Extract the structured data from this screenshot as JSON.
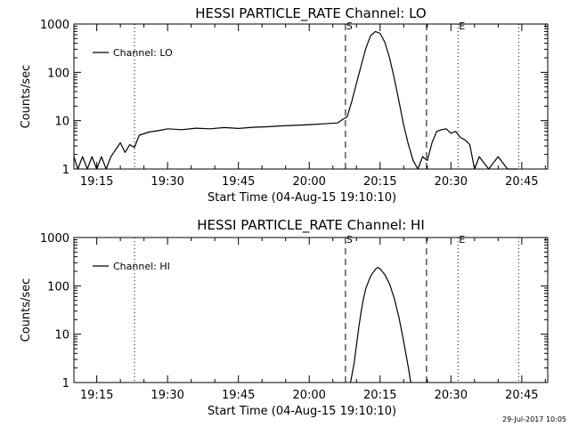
{
  "footer": {
    "timestamp": "29-Jul-2017 10:05"
  },
  "chart_data": [
    {
      "type": "line",
      "title": "HESSI PARTICLE_RATE Channel: LO",
      "xlabel": "Start Time (04-Aug-15 19:10:10)",
      "ylabel": "Counts/sec",
      "y_scale": "log",
      "ylim": [
        1,
        1000
      ],
      "xlim": [
        "19:10:10",
        "20:50:30"
      ],
      "x_ticks": [
        "19:15",
        "19:30",
        "19:45",
        "20:00",
        "20:15",
        "20:30",
        "20:45"
      ],
      "y_ticks": [
        "1",
        "10",
        "100",
        "1000"
      ],
      "legend": {
        "position": "top-left",
        "entries": [
          "Channel: LO"
        ]
      },
      "markers": [
        {
          "time": "19:23",
          "style": "dotted",
          "label": ""
        },
        {
          "time": "20:07:40",
          "style": "dashed",
          "label": "S"
        },
        {
          "time": "20:24:50",
          "style": "dashed",
          "label": ""
        },
        {
          "time": "20:31:30",
          "style": "dotted",
          "label": "E"
        },
        {
          "time": "20:44:20",
          "style": "dotted",
          "label": ""
        }
      ],
      "series": [
        {
          "name": "Channel: LO",
          "x": [
            "19:10:10",
            "19:11:00",
            "19:12:00",
            "19:13:00",
            "19:14:00",
            "19:15:00",
            "19:16:00",
            "19:17:00",
            "19:18:00",
            "19:19:00",
            "19:20:00",
            "19:21:00",
            "19:22:00",
            "19:23:00",
            "19:24:00",
            "19:26:00",
            "19:28:00",
            "19:30:00",
            "19:33:00",
            "19:36:00",
            "19:39:00",
            "19:42:00",
            "19:45:00",
            "19:48:00",
            "19:51:00",
            "19:54:00",
            "19:57:00",
            "20:00:00",
            "20:03:00",
            "20:06:00",
            "20:07:00",
            "20:08:00",
            "20:09:00",
            "20:10:00",
            "20:11:00",
            "20:12:00",
            "20:13:00",
            "20:14:00",
            "20:15:00",
            "20:16:00",
            "20:17:00",
            "20:18:00",
            "20:19:00",
            "20:20:00",
            "20:21:00",
            "20:22:00",
            "20:23:00",
            "20:24:00",
            "20:25:00",
            "20:26:00",
            "20:27:00",
            "20:28:00",
            "20:29:00",
            "20:30:00",
            "20:31:00",
            "20:32:00",
            "20:33:00",
            "20:34:00",
            "20:35:00",
            "20:36:00",
            "20:38:00",
            "20:40:00",
            "20:42:00",
            "20:44:00"
          ],
          "y": [
            1.8,
            1.0,
            1.8,
            1.0,
            1.8,
            1.0,
            1.8,
            1.0,
            1.8,
            2.5,
            3.5,
            2.2,
            3.2,
            2.8,
            5.0,
            5.8,
            6.2,
            6.8,
            6.5,
            7.0,
            6.8,
            7.2,
            6.9,
            7.3,
            7.5,
            7.8,
            8.0,
            8.3,
            8.6,
            9.0,
            10.5,
            12,
            25,
            60,
            140,
            320,
            580,
            700,
            640,
            420,
            200,
            75,
            25,
            8,
            3.2,
            1.5,
            1.0,
            1.8,
            1.5,
            3.5,
            6.0,
            6.5,
            6.8,
            5.5,
            6.0,
            4.5,
            4.0,
            3.2,
            1.0,
            1.8,
            1.0,
            1.8,
            1.0,
            1.0
          ]
        }
      ]
    },
    {
      "type": "line",
      "title": "HESSI PARTICLE_RATE Channel: HI",
      "xlabel": "Start Time (04-Aug-15 19:10:10)",
      "ylabel": "Counts/sec",
      "y_scale": "log",
      "ylim": [
        1,
        1000
      ],
      "xlim": [
        "19:10:10",
        "20:50:30"
      ],
      "x_ticks": [
        "19:15",
        "19:30",
        "19:45",
        "20:00",
        "20:15",
        "20:30",
        "20:45"
      ],
      "y_ticks": [
        "1",
        "10",
        "100",
        "1000"
      ],
      "legend": {
        "position": "top-left",
        "entries": [
          "Channel: HI"
        ]
      },
      "markers": [
        {
          "time": "19:23",
          "style": "dotted",
          "label": ""
        },
        {
          "time": "20:07:40",
          "style": "dashed",
          "label": "S"
        },
        {
          "time": "20:24:50",
          "style": "dashed",
          "label": ""
        },
        {
          "time": "20:31:30",
          "style": "dotted",
          "label": "E"
        },
        {
          "time": "20:44:20",
          "style": "dotted",
          "label": ""
        }
      ],
      "series": [
        {
          "name": "Channel: HI",
          "x": [
            "20:08:45",
            "20:09:30",
            "20:10:00",
            "20:10:30",
            "20:11:00",
            "20:11:30",
            "20:12:00",
            "20:13:00",
            "20:14:00",
            "20:14:30",
            "20:15:00",
            "20:16:00",
            "20:17:00",
            "20:18:00",
            "20:19:00",
            "20:20:00",
            "20:21:00",
            "20:21:30"
          ],
          "y": [
            1.0,
            2.5,
            6.0,
            14,
            30,
            55,
            90,
            160,
            220,
            240,
            225,
            170,
            110,
            55,
            22,
            7,
            2.0,
            1.0
          ]
        }
      ]
    }
  ]
}
